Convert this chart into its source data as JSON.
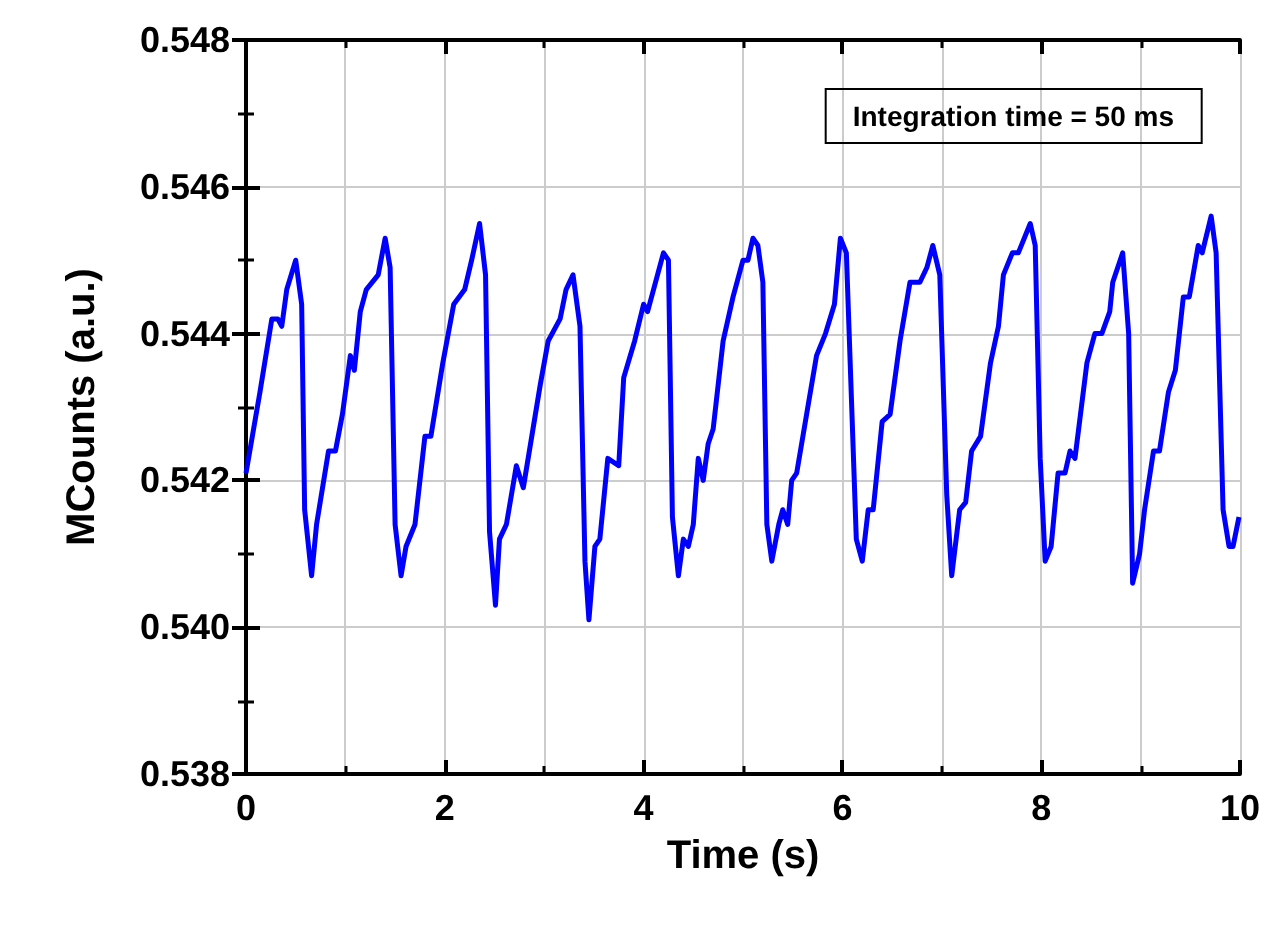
{
  "chart_data": {
    "type": "line",
    "xlabel": "Time (s)",
    "ylabel": "MCounts (a.u.)",
    "annotations": [
      "Integration time = 50 ms"
    ],
    "xlim": [
      0,
      10
    ],
    "xticks": [
      0,
      2,
      4,
      6,
      8,
      10
    ],
    "ylim": [
      0.538,
      0.548
    ],
    "yticks": [
      0.538,
      {
        "value": 0.54,
        "label": "0.540"
      },
      0.542,
      0.544,
      0.546,
      0.548
    ],
    "grid": true,
    "marker": "none",
    "line_style": "solid",
    "x": [
      0,
      0.14,
      0.26,
      0.32,
      0.36,
      0.41,
      0.5,
      0.56,
      0.59,
      0.66,
      0.71,
      0.83,
      0.9,
      0.97,
      1.05,
      1.09,
      1.15,
      1.21,
      1.33,
      1.4,
      1.45,
      1.5,
      1.56,
      1.61,
      1.7,
      1.8,
      1.86,
      1.98,
      2.09,
      2.2,
      2.27,
      2.35,
      2.41,
      2.45,
      2.51,
      2.55,
      2.62,
      2.72,
      2.79,
      2.96,
      3.04,
      3.16,
      3.22,
      3.29,
      3.36,
      3.41,
      3.45,
      3.51,
      3.56,
      3.64,
      3.75,
      3.8,
      3.91,
      4.0,
      4.04,
      4.1,
      4.2,
      4.25,
      4.29,
      4.35,
      4.4,
      4.45,
      4.5,
      4.55,
      4.6,
      4.65,
      4.7,
      4.8,
      4.9,
      5.0,
      5.05,
      5.1,
      5.15,
      5.2,
      5.24,
      5.29,
      5.36,
      5.4,
      5.45,
      5.49,
      5.54,
      5.64,
      5.74,
      5.83,
      5.92,
      5.98,
      6.04,
      6.14,
      6.2,
      6.26,
      6.31,
      6.4,
      6.48,
      6.58,
      6.68,
      6.78,
      6.85,
      6.91,
      6.98,
      7.05,
      7.1,
      7.18,
      7.24,
      7.3,
      7.39,
      7.49,
      7.57,
      7.62,
      7.71,
      7.77,
      7.89,
      7.94,
      7.99,
      8.04,
      8.1,
      8.17,
      8.24,
      8.29,
      8.34,
      8.46,
      8.54,
      8.61,
      8.69,
      8.72,
      8.82,
      8.88,
      8.92,
      8.99,
      9.04,
      9.13,
      9.19,
      9.28,
      9.35,
      9.43,
      9.49,
      9.58,
      9.62,
      9.71,
      9.76,
      9.83,
      9.89,
      9.93,
      9.99
    ],
    "series": [
      {
        "color": "#0000ff",
        "values": [
          0.5421,
          0.5432,
          0.5442,
          0.5442,
          0.5441,
          0.5446,
          0.545,
          0.5444,
          0.5416,
          0.5407,
          0.5414,
          0.5424,
          0.5424,
          0.5429,
          0.5437,
          0.5435,
          0.5443,
          0.5446,
          0.5448,
          0.5453,
          0.5449,
          0.5414,
          0.5407,
          0.5411,
          0.5414,
          0.5426,
          0.5426,
          0.5436,
          0.5444,
          0.5446,
          0.545,
          0.5455,
          0.5448,
          0.5413,
          0.5403,
          0.5412,
          0.5414,
          0.5422,
          0.5419,
          0.5433,
          0.5439,
          0.5442,
          0.5446,
          0.5448,
          0.5441,
          0.5409,
          0.5401,
          0.5411,
          0.5412,
          0.5423,
          0.5422,
          0.5434,
          0.5439,
          0.5444,
          0.5443,
          0.5446,
          0.5451,
          0.545,
          0.5415,
          0.5407,
          0.5412,
          0.5411,
          0.5414,
          0.5423,
          0.542,
          0.5425,
          0.5427,
          0.5439,
          0.5445,
          0.545,
          0.545,
          0.5453,
          0.5452,
          0.5447,
          0.5414,
          0.5409,
          0.5414,
          0.5416,
          0.5414,
          0.542,
          0.5421,
          0.5429,
          0.5437,
          0.544,
          0.5444,
          0.5453,
          0.5451,
          0.5412,
          0.5409,
          0.5416,
          0.5416,
          0.5428,
          0.5429,
          0.5439,
          0.5447,
          0.5447,
          0.5449,
          0.5452,
          0.5448,
          0.5418,
          0.5407,
          0.5416,
          0.5417,
          0.5424,
          0.5426,
          0.5436,
          0.5441,
          0.5448,
          0.5451,
          0.5451,
          0.5455,
          0.5452,
          0.5423,
          0.5409,
          0.5411,
          0.5421,
          0.5421,
          0.5424,
          0.5423,
          0.5436,
          0.544,
          0.544,
          0.5443,
          0.5447,
          0.5451,
          0.544,
          0.5406,
          0.541,
          0.5416,
          0.5424,
          0.5424,
          0.5432,
          0.5435,
          0.5445,
          0.5445,
          0.5452,
          0.5451,
          0.5456,
          0.5451,
          0.5416,
          0.5411,
          0.5411,
          0.5415
        ]
      }
    ]
  }
}
